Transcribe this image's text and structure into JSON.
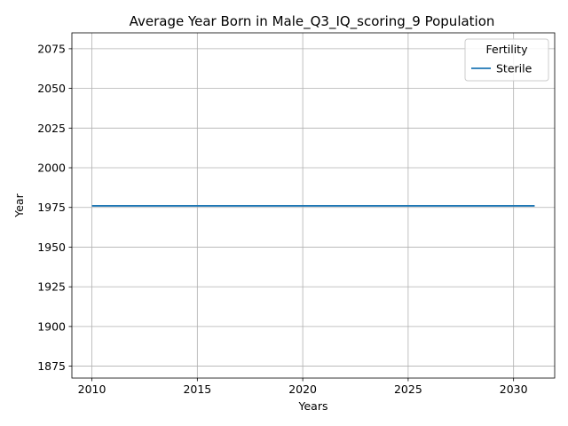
{
  "chart_data": {
    "type": "line",
    "title": "Average Year Born in Male_Q3_IQ_scoring_9 Population",
    "xlabel": "Years",
    "ylabel": "Year",
    "xlim": [
      2009.05,
      2031.95
    ],
    "ylim": [
      1867.5,
      2085
    ],
    "xticks": [
      2010,
      2015,
      2020,
      2025,
      2030
    ],
    "yticks": [
      1875,
      1900,
      1925,
      1950,
      1975,
      2000,
      2025,
      2050,
      2075
    ],
    "grid": true,
    "legend": {
      "title": "Fertility",
      "placement": "top-right"
    },
    "series": [
      {
        "name": "Sterile",
        "color": "#1f77b4",
        "x": [
          2010,
          2011,
          2012,
          2013,
          2014,
          2015,
          2016,
          2017,
          2018,
          2019,
          2020,
          2021,
          2022,
          2023,
          2024,
          2025,
          2026,
          2027,
          2028,
          2029,
          2030,
          2031
        ],
        "y": [
          1976,
          1976,
          1976,
          1976,
          1976,
          1976,
          1976,
          1976,
          1976,
          1976,
          1976,
          1976,
          1976,
          1976,
          1976,
          1976,
          1976,
          1976,
          1976,
          1976,
          1976,
          1976
        ]
      }
    ]
  }
}
